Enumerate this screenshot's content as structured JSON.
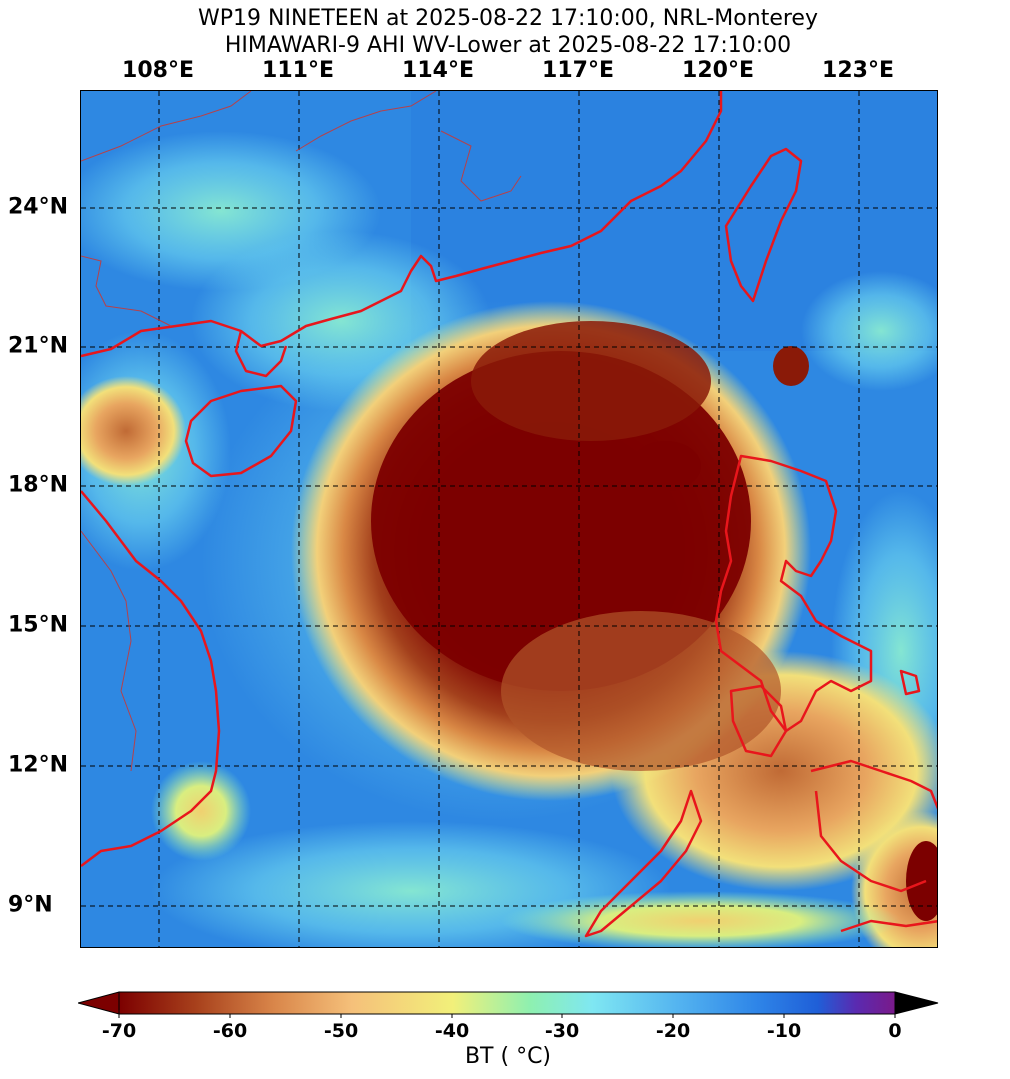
{
  "header": {
    "title_line1": "WP19 NINETEEN at 2025-08-22 17:10:00, NRL-Monterey",
    "title_line2": "HIMAWARI-9 AHI WV-Lower at 2025-08-22 17:10:00"
  },
  "map": {
    "longitude_labels": [
      "108°E",
      "111°E",
      "114°E",
      "117°E",
      "120°E",
      "123°E"
    ],
    "latitude_labels": [
      "24°N",
      "21°N",
      "18°N",
      "15°N",
      "12°N",
      "9°N"
    ],
    "extent": {
      "lon": [
        106.3,
        124.7
      ],
      "lat": [
        8.2,
        26.6
      ]
    },
    "gridlines": "dashed",
    "coastline_color": "#e8161c",
    "border_color": "#c43a3a",
    "features": {
      "storm": "WP19 NINETEEN",
      "storm_center": {
        "lon": 116.0,
        "lat": 16.8
      }
    }
  },
  "colorbar": {
    "label": "BT ( $^\\circ$C)",
    "label_text": "BT ( °C)",
    "ticks": [
      "-70",
      "-60",
      "-50",
      "-40",
      "-30",
      "-20",
      "-10",
      "0"
    ],
    "range": [
      -70,
      0
    ],
    "colors": [
      "#7c0000",
      "#a8411c",
      "#e0894c",
      "#f6c27a",
      "#f2f07a",
      "#8ef0b0",
      "#7fe7f2",
      "#54b4f0",
      "#2f86e8",
      "#1f5fd8",
      "#5a2ab0",
      "#7a1a8a"
    ]
  }
}
